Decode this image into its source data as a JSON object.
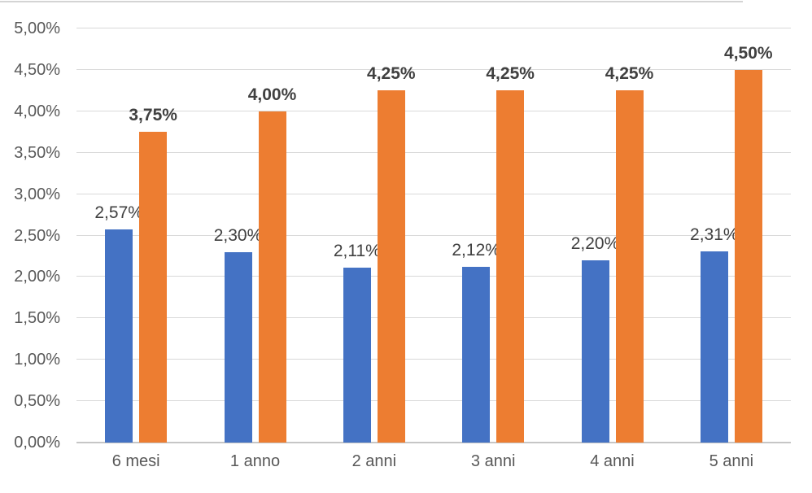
{
  "chart_data": {
    "type": "bar",
    "title": "",
    "categories": [
      "6 mesi",
      "1 anno",
      "2 anni",
      "3 anni",
      "4 anni",
      "5 anni"
    ],
    "series": [
      {
        "color": "#4472C4",
        "values": [
          2.57,
          2.3,
          2.11,
          2.12,
          2.2,
          2.31
        ],
        "data_labels": [
          "2,57%",
          "2,30%",
          "2,11%",
          "2,12%",
          "2,20%",
          "2,31%"
        ],
        "label_bold": false
      },
      {
        "color": "#ED7D31",
        "values": [
          3.75,
          4.0,
          4.25,
          4.25,
          4.25,
          4.5
        ],
        "data_labels": [
          "3,75%",
          "4,00%",
          "4,25%",
          "4,25%",
          "4,25%",
          "4,50%"
        ],
        "label_bold": true
      }
    ],
    "y_axis": {
      "ticks": [
        "0,00%",
        "0,50%",
        "1,00%",
        "1,50%",
        "2,00%",
        "2,50%",
        "3,00%",
        "3,50%",
        "4,00%",
        "4,50%",
        "5,00%"
      ],
      "min": 0,
      "max": 5,
      "step": 0.5,
      "unit": "%"
    },
    "grid": true,
    "legend": "none"
  },
  "colors": {
    "gridline": "#D9D9D9",
    "baseline": "#C6C6C6",
    "axis_text": "#595959",
    "data_label_text": "#404040",
    "top_border": "#D4D4D4"
  }
}
